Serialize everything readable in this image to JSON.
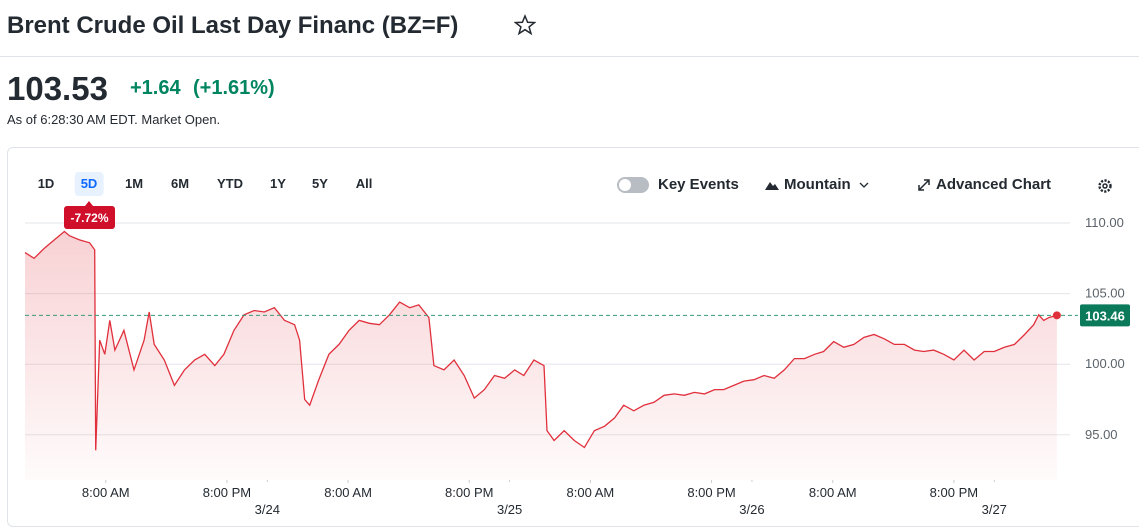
{
  "header": {
    "title": "Brent Crude Oil Last Day Financ (BZ=F)"
  },
  "quote": {
    "price": "103.53",
    "change": "+1.64",
    "change_percent": "(+1.61%)",
    "as_of": "As of 6:28:30 AM EDT. Market Open."
  },
  "controls": {
    "ranges": [
      "1D",
      "5D",
      "1M",
      "6M",
      "YTD",
      "1Y",
      "5Y",
      "All"
    ],
    "key_events": "Key Events",
    "chart_style": "Mountain",
    "advanced": "Advanced Chart"
  },
  "chart_data": {
    "type": "area",
    "change_label": "-7.72%",
    "x": [
      -24,
      -23.1,
      -22.1,
      -21.1,
      -20.1,
      -19.6,
      -18.6,
      -17.6,
      -17.1,
      -17.0,
      -16.6,
      -16.1,
      -15.6,
      -15.1,
      -14.2,
      -13.2,
      -12.2,
      -11.7,
      -11.2,
      -10.2,
      -9.2,
      -8.2,
      -7.2,
      -6.2,
      -5.2,
      -4.3,
      -3.3,
      -2.3,
      -1.3,
      -0.3,
      0.7,
      1.7,
      2.7,
      3.2,
      3.7,
      4.2,
      5.1,
      6.1,
      7.1,
      8.1,
      9.1,
      10.1,
      11.1,
      12.1,
      13.1,
      14.1,
      15.0,
      16.0,
      16.5,
      17.5,
      18.5,
      19.5,
      20.5,
      21.5,
      22.5,
      23.5,
      24.5,
      25.4,
      26.4,
      27.4,
      27.7,
      28.4,
      29.4,
      30.4,
      31.4,
      32.4,
      33.4,
      34.4,
      35.3,
      36.3,
      37.3,
      38.3,
      39.3,
      40.3,
      41.3,
      42.3,
      43.3,
      44.3,
      45.2,
      46.2,
      47.2,
      48.2,
      49.2,
      50.2,
      51.2,
      52.2,
      53.2,
      54.2,
      55.1,
      56.1,
      57.1,
      58.1,
      59.1,
      60.1,
      61.1,
      62.1,
      63.1,
      64.1,
      65.0,
      66.0,
      67.0,
      68.0,
      69.0,
      70.0,
      71.0,
      72.0,
      73.0,
      74.0,
      75.0,
      75.9,
      76.4,
      76.9,
      77.4,
      78.2
    ],
    "series": [
      {
        "name": "BZ=F",
        "color": "#e0303c",
        "values": [
          107.9,
          107.5,
          108.2,
          108.8,
          109.4,
          109.1,
          108.8,
          108.6,
          108.1,
          93.9,
          101.7,
          100.7,
          103.1,
          101.0,
          102.4,
          99.6,
          101.7,
          103.7,
          101.4,
          100.3,
          98.5,
          99.6,
          100.3,
          100.7,
          99.9,
          100.7,
          102.4,
          103.5,
          103.8,
          103.7,
          104.0,
          103.1,
          102.8,
          101.7,
          97.5,
          97.1,
          98.9,
          100.7,
          101.4,
          102.4,
          103.1,
          102.9,
          102.8,
          103.5,
          104.4,
          104.0,
          104.2,
          103.3,
          99.9,
          99.6,
          100.3,
          99.2,
          97.6,
          98.2,
          99.2,
          99.0,
          99.6,
          99.2,
          100.3,
          99.9,
          95.3,
          94.6,
          95.3,
          94.6,
          94.1,
          95.3,
          95.6,
          96.2,
          97.1,
          96.7,
          97.1,
          97.3,
          97.8,
          97.9,
          97.8,
          98.0,
          97.9,
          98.2,
          98.2,
          98.5,
          98.8,
          98.9,
          99.2,
          99.0,
          99.6,
          100.4,
          100.4,
          100.7,
          100.9,
          101.6,
          101.2,
          101.4,
          101.9,
          102.1,
          101.8,
          101.4,
          101.4,
          101.0,
          100.9,
          101.0,
          100.7,
          100.3,
          101.0,
          100.3,
          100.9,
          100.9,
          101.2,
          101.4,
          102.1,
          102.8,
          103.5,
          103.1,
          103.3,
          103.46
        ]
      }
    ],
    "xlim": [
      -24,
      79.5
    ],
    "ylim": [
      91.8,
      111.3
    ],
    "xticks": [
      {
        "value": -16,
        "label": "8:00 AM"
      },
      {
        "value": -4,
        "label": "8:00 PM"
      },
      {
        "value": 8,
        "label": "8:00 AM"
      },
      {
        "value": 20,
        "label": "8:00 PM"
      },
      {
        "value": 32,
        "label": "8:00 AM"
      },
      {
        "value": 44,
        "label": "8:00 PM"
      },
      {
        "value": 56,
        "label": "8:00 AM"
      },
      {
        "value": 68,
        "label": "8:00 PM"
      }
    ],
    "xdate_ticks": [
      {
        "value": 0,
        "label": "3/24"
      },
      {
        "value": 24,
        "label": "3/25"
      },
      {
        "value": 48,
        "label": "3/26"
      },
      {
        "value": 72,
        "label": "3/27"
      }
    ],
    "yticks": [
      {
        "value": 95,
        "label": "95.00"
      },
      {
        "value": 100,
        "label": "100.00"
      },
      {
        "value": 105,
        "label": "105.00"
      },
      {
        "value": 110,
        "label": "110.00"
      }
    ],
    "grid": true
  }
}
